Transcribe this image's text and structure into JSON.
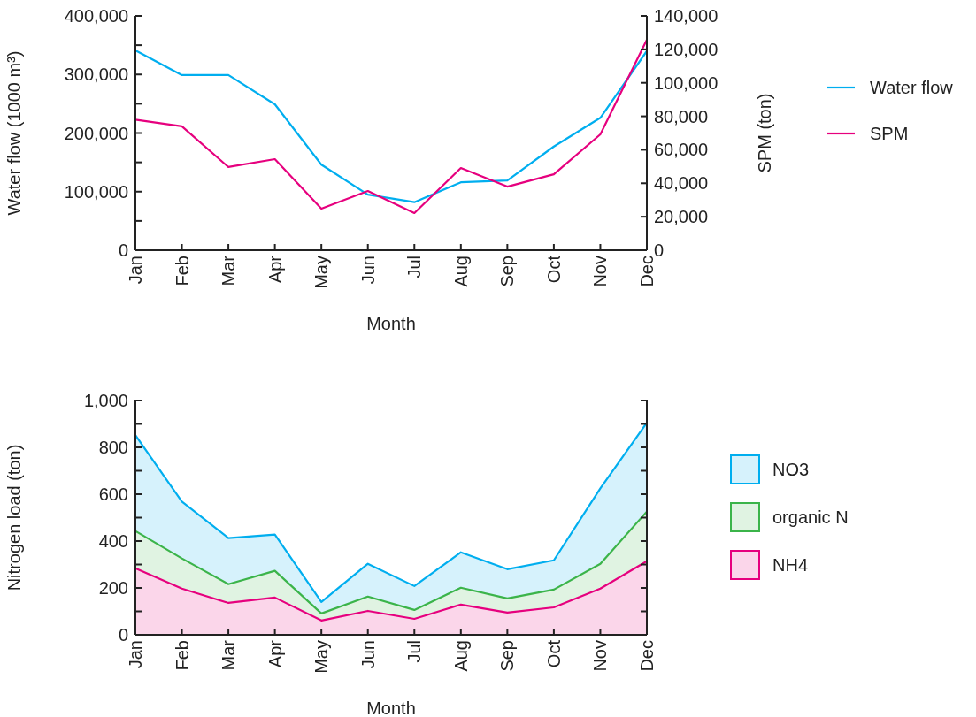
{
  "chart_data": [
    {
      "type": "line",
      "xlabel": "Month",
      "ylabel": "Water flow (1000 m³)",
      "y2label": "SPM (ton)",
      "legend": "right",
      "categories": [
        "Jan",
        "Feb",
        "Mar",
        "Apr",
        "May",
        "Jun",
        "Jul",
        "Aug",
        "Sep",
        "Oct",
        "Nov",
        "Dec"
      ],
      "series": [
        {
          "name": "Water flow",
          "color": "#00aeef",
          "values": [
            341000,
            299000,
            299000,
            249000,
            146000,
            95000,
            82000,
            116000,
            119000,
            177000,
            226000,
            340000
          ]
        },
        {
          "name": "SPM",
          "color": "#e6007e",
          "axis": "y2",
          "values": [
            78000,
            74000,
            49700,
            54400,
            24800,
            35400,
            22200,
            49100,
            38000,
            45400,
            69200,
            125700
          ]
        }
      ],
      "ylim": [
        0,
        400000
      ],
      "yticks": [
        0,
        {
          "value": 50000,
          "label": null
        },
        {
          "value": 100000,
          "label": "100,000"
        },
        {
          "value": 150000,
          "label": null
        },
        {
          "value": 200000,
          "label": "200,000"
        },
        {
          "value": 250000,
          "label": null
        },
        {
          "value": 300000,
          "label": "300,000"
        },
        {
          "value": 350000,
          "label": null
        },
        {
          "value": 400000,
          "label": "400,000"
        }
      ],
      "y2lim": [
        0,
        140000
      ],
      "y2ticks": [
        0,
        {
          "value": 20000,
          "label": "20,000"
        },
        {
          "value": 40000,
          "label": "40,000"
        },
        {
          "value": 60000,
          "label": "60,000"
        },
        {
          "value": 80000,
          "label": "80,000"
        },
        {
          "value": 100000,
          "label": "100,000"
        },
        {
          "value": 120000,
          "label": "120,000"
        },
        {
          "value": 140000,
          "label": "140,000"
        }
      ]
    },
    {
      "type": "area",
      "stacked": true,
      "xlabel": "Month",
      "ylabel": "Nitrogen load (ton)",
      "legend": "right",
      "categories": [
        "Jan",
        "Feb",
        "Mar",
        "Apr",
        "May",
        "Jun",
        "Jul",
        "Aug",
        "Sep",
        "Oct",
        "Nov",
        "Dec"
      ],
      "series": [
        {
          "name": "NH4",
          "color": "#e6007e",
          "values": [
            284,
            197,
            136,
            159,
            61,
            102,
            68,
            129,
            95,
            117,
            197,
            314
          ]
        },
        {
          "name": "organic N",
          "color": "#3bb44a",
          "values": [
            159,
            129,
            80,
            114,
            30,
            61,
            38,
            72,
            60,
            76,
            106,
            212
          ]
        },
        {
          "name": "NO3",
          "color": "#00aeef",
          "values": [
            409,
            242,
            197,
            155,
            49,
            140,
            102,
            151,
            125,
            125,
            322,
            379
          ]
        }
      ],
      "ylim": [
        0,
        1000
      ],
      "yticks": [
        0,
        {
          "value": 100,
          "label": null
        },
        200,
        {
          "value": 300,
          "label": null
        },
        400,
        {
          "value": 500,
          "label": null
        },
        600,
        {
          "value": 700,
          "label": null
        },
        800,
        {
          "value": 900,
          "label": null
        },
        {
          "value": 1000,
          "label": "1,000"
        }
      ]
    }
  ]
}
